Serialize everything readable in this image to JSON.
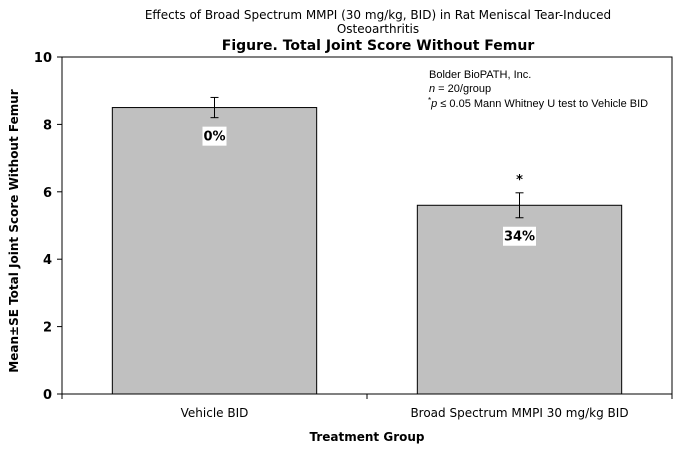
{
  "chart_data": {
    "type": "bar",
    "suptitle_lines": [
      "Effects of Broad Spectrum MMPI (30 mg/kg, BID) in Rat Meniscal Tear-Induced",
      "Osteoarthritis"
    ],
    "title": "Figure. Total Joint Score Without Femur",
    "xlabel": "Treatment Group",
    "ylabel": "Mean±SE Total Joint Score Without Femur",
    "ylim": [
      0,
      10
    ],
    "yticks": [
      0,
      2,
      4,
      6,
      8,
      10
    ],
    "grid": false,
    "categories": [
      "Vehicle BID",
      "Broad Spectrum MMPI 30 mg/kg BID"
    ],
    "values": [
      8.5,
      5.6
    ],
    "errors": [
      0.3,
      0.37
    ],
    "bar_labels": [
      "0%",
      "34%"
    ],
    "significance_markers": [
      "",
      "*"
    ],
    "bar_color": "#c0c0c0",
    "annotation": {
      "lab": "Bolder BioPATH, Inc.",
      "n_italic": "n",
      "n_rest": " = 20/group",
      "p_star": "*",
      "p_italic": "p",
      "p_rest": " ≤ 0.05 Mann Whitney U test to Vehicle BID"
    }
  }
}
